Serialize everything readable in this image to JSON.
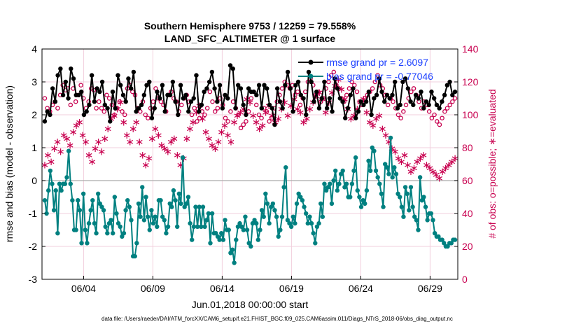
{
  "chart_data": {
    "type": "line",
    "title_line1": "Southern Hemisphere 9753 / 12259 = 79.558%",
    "title_line2": "LAND_SFC_ALTIMETER @ 1 surface",
    "xlabel": "Jun.01,2018 00:00:00 start",
    "ylabel": "rmse and bias (model - observation)",
    "ylabel_right": "# of obs: o=possible; ∗=evaluated",
    "footnote": "data file: /Users/raeder/DAI/ATM_forcXX/CAM6_setup/f.e21.FHIST_BGC.f09_025.CAM6assim.011/Diags_NTrS_2018-06/obs_diag_output.nc",
    "xlim": [
      1,
      31
    ],
    "ylim": [
      -3,
      4
    ],
    "ylim_right": [
      0,
      140
    ],
    "x_tick_values": [
      4,
      9,
      14,
      19,
      24,
      29
    ],
    "x_tick_labels": [
      "06/04",
      "06/09",
      "06/14",
      "06/19",
      "06/24",
      "06/29"
    ],
    "y_ticks": [
      "4",
      "3",
      "2",
      "1",
      "0",
      "-1",
      "-2",
      "-3"
    ],
    "y_ticks_right": [
      "140",
      "120",
      "100",
      "80",
      "60",
      "40",
      "20",
      "0"
    ],
    "legend": [
      {
        "label": "rmse grand pr = 2.6097",
        "color": "#000000"
      },
      {
        "label": "bias grand pr = -0.77046",
        "color": "#008080"
      }
    ],
    "colors": {
      "rmse": "#000000",
      "bias": "#008080",
      "obs": "#c8004f",
      "zero": "#aaaaaa"
    },
    "rmse": [
      1.8,
      2.1,
      2.0,
      2.8,
      2.4,
      3.2,
      3.4,
      2.6,
      3.0,
      2.5,
      3.4,
      3.1,
      2.6,
      2.6,
      2.7,
      2.0,
      2.1,
      2.3,
      3.2,
      2.4,
      2.8,
      2.7,
      3.0,
      2.3,
      2.2,
      1.8,
      2.7,
      2.2,
      3.2,
      2.9,
      2.6,
      2.4,
      3.1,
      2.8,
      3.3,
      2.1,
      2.2,
      2.3,
      2.6,
      2.9,
      3.0,
      1.9,
      2.2,
      2.7,
      2.5,
      2.9,
      2.1,
      2.6,
      2.6,
      3.0,
      2.4,
      2.0,
      2.9,
      2.5,
      2.6,
      2.1,
      2.4,
      2.5,
      3.2,
      2.1,
      2.3,
      2.7,
      2.8,
      3.0,
      3.3,
      2.8,
      2.4,
      2.9,
      2.2,
      2.6,
      2.5,
      3.5,
      3.4,
      2.2,
      2.9,
      2.8,
      2.3,
      2.0,
      2.8,
      2.7,
      2.7,
      2.6,
      2.9,
      2.2,
      2.9,
      2.8,
      2.3,
      2.2,
      1.7,
      2.8,
      2.4,
      2.2,
      2.9,
      3.3,
      2.8,
      2.1,
      2.9,
      3.0,
      2.6,
      2.5,
      2.0,
      3.3,
      3.0,
      2.4,
      2.7,
      2.2,
      2.5,
      3.0,
      2.2,
      2.5,
      2.1,
      3.1,
      2.8,
      2.5,
      2.4,
      1.9,
      2.2,
      2.6,
      2.8,
      1.9,
      2.1,
      2.4,
      2.3,
      2.4,
      2.7,
      2.0,
      2.5,
      2.6,
      3.1,
      2.7,
      2.4,
      2.6,
      2.5,
      2.6,
      3.0,
      2.2,
      2.3,
      3.0,
      3.1,
      2.8,
      2.4,
      2.3,
      2.6,
      2.5,
      2.7,
      2.2,
      2.4,
      2.3,
      2.7,
      2.5,
      2.3,
      2.2,
      2.4,
      2.6,
      2.9,
      3.0,
      2.6,
      2.7
    ],
    "bias": [
      -0.6,
      -1.0,
      -0.3,
      0.3,
      -0.1,
      -0.9,
      -0.3,
      -1.6,
      -0.1,
      -0.3,
      -0.1,
      -0.1,
      0.1,
      0.9,
      -0.1,
      -0.6,
      -1.5,
      -1.5,
      -0.6,
      -0.9,
      -1.9,
      -0.4,
      -1.5,
      -1.9,
      -1.3,
      -0.9,
      -0.6,
      -1.3,
      -1.6,
      -0.4,
      -0.7,
      -0.8,
      -0.9,
      -1.4,
      -1.6,
      -1.3,
      -1.2,
      -1.6,
      -0.5,
      -1.0,
      -1.3,
      -1.4,
      -1.7,
      -1.6,
      -0.9,
      -0.6,
      -0.8,
      -1.2,
      -2.3,
      -2.3,
      -1.9,
      -0.7,
      -1.1,
      -0.2,
      -1.2,
      -0.5,
      -1.1,
      -1.5,
      -0.9,
      -1.3,
      -1.1,
      -1.4,
      -0.6,
      -0.6,
      -1.1,
      -1.2,
      -1.6,
      -1.4,
      -0.7,
      -0.8,
      -0.3,
      -0.6,
      -1.4,
      -0.4,
      -0.7,
      0.7,
      -0.8,
      -0.7,
      -0.5,
      -1.3,
      -1.8,
      -1.4,
      -0.8,
      -1.4,
      -0.8,
      -1.4,
      -0.8,
      -1.4,
      -1.2,
      -1.0,
      -1.9,
      -1.0,
      -1.6,
      -1.6,
      -1.7,
      -1.8,
      -1.6,
      -1.8,
      -1.2,
      -1.5,
      -1.5,
      -2.2,
      -2.1,
      -2.5,
      -1.8,
      -1.4,
      -1.3,
      -1.4,
      -1.5,
      -1.1,
      -1.5,
      -1.9,
      -2.0,
      -1.3,
      -1.2,
      -1.3,
      -1.8,
      -1.5,
      -0.9,
      -1.1,
      -0.4,
      -0.7,
      -1.3,
      -0.8,
      -0.7,
      -0.9,
      -1.1,
      -1.7,
      -1.5,
      -1.1,
      -0.2,
      0.4,
      -1.2,
      -1.3,
      -1.4,
      -1.1,
      -1.3,
      -0.7,
      -0.4,
      -0.5,
      -0.6,
      -0.8,
      -1.0,
      -1.3,
      -1.1,
      -1.3,
      -1.6,
      -1.9,
      -1.4,
      -1.3,
      -0.7,
      -1.1,
      -0.1,
      -0.3,
      -0.2,
      -0.1,
      -0.7,
      0.0,
      0.3,
      -0.3,
      -0.1,
      0.2,
      0.3,
      -0.2,
      -0.1,
      -0.5,
      -0.5,
      -0.1,
      0.3,
      0.7,
      -0.3,
      -0.5,
      -0.8,
      -0.6,
      -0.7,
      -0.3,
      0.6,
      0.3,
      1.0,
      0.9,
      0.3,
      0.1,
      -0.1,
      -0.4,
      -0.8,
      0.5,
      0.4,
      0.2,
      1.3,
      0.1,
      0.4,
      0.2,
      -0.4,
      -0.5,
      -0.8,
      -1.1,
      -0.2,
      -0.4,
      -0.9,
      -0.2,
      -0.8,
      -1.1,
      -1.2,
      -1.5,
      0.1,
      -0.6,
      -0.5,
      -0.8,
      -1.2,
      -1.0,
      -1.0,
      -1.2,
      -1.6,
      -1.7,
      -1.7,
      -1.8,
      -1.8,
      -1.9,
      -2.0,
      -2.0,
      -1.9,
      -1.9,
      -1.8,
      -1.8
    ],
    "obs_possible": [
      110,
      104,
      102,
      106,
      108,
      104,
      112,
      118,
      115,
      116,
      106,
      116,
      108,
      112,
      118,
      110,
      104,
      108,
      116,
      115,
      104,
      108,
      104,
      102,
      112,
      110,
      106,
      100,
      104,
      108,
      102,
      100,
      116,
      118,
      114,
      112,
      104,
      102,
      108,
      100,
      98,
      104,
      108,
      116,
      110,
      108,
      106,
      102,
      112,
      114,
      110,
      108,
      102,
      106,
      110,
      112,
      108,
      100,
      104,
      96,
      98,
      102,
      100,
      104,
      114,
      108,
      102,
      104,
      110,
      106,
      98,
      96,
      102,
      108,
      104,
      100,
      92,
      94,
      96,
      102,
      110,
      114,
      106,
      100,
      98,
      104,
      102,
      96,
      98,
      104,
      108,
      112,
      116,
      120,
      118,
      116,
      118,
      112,
      114,
      106,
      110,
      114,
      120,
      122,
      118,
      112,
      114,
      108,
      110,
      116,
      120,
      124,
      126,
      118,
      116,
      110,
      108,
      112,
      116,
      120,
      118,
      114,
      108,
      106,
      110,
      112,
      114,
      116,
      120,
      124,
      118,
      116,
      112,
      106,
      110,
      108,
      104,
      100,
      98,
      102,
      106,
      110,
      114,
      116,
      112,
      108,
      104,
      108,
      106,
      102,
      98,
      100,
      96,
      94,
      98,
      102,
      104,
      106,
      108,
      110
    ],
    "obs_evaluated": [
      70,
      76,
      72,
      80,
      84,
      78,
      88,
      86,
      82,
      90,
      94,
      96,
      88,
      84,
      76,
      72,
      80,
      84,
      78,
      86,
      92,
      98,
      100,
      104,
      108,
      96,
      88,
      84,
      92,
      96,
      84,
      76,
      70,
      74,
      86,
      92,
      88,
      82,
      80,
      78,
      84,
      86,
      76,
      70,
      74,
      86,
      92,
      96,
      102,
      106,
      98,
      90,
      86,
      82,
      80,
      84,
      90,
      94,
      88,
      84,
      96,
      100,
      102,
      104,
      110,
      108,
      100,
      96,
      92,
      94,
      102,
      106,
      100,
      96,
      98,
      104,
      108,
      100,
      106,
      110,
      104,
      102,
      96,
      98,
      104,
      108,
      112,
      114,
      110,
      102,
      108,
      114,
      118,
      122,
      116,
      110,
      104,
      98,
      100,
      104,
      108,
      110,
      102,
      96,
      94,
      98,
      100,
      92,
      88,
      84,
      80,
      78,
      74,
      72,
      76,
      70,
      66,
      68,
      72,
      74,
      76,
      70,
      68,
      66,
      64,
      62,
      66,
      68,
      70,
      72,
      74
    ]
  }
}
